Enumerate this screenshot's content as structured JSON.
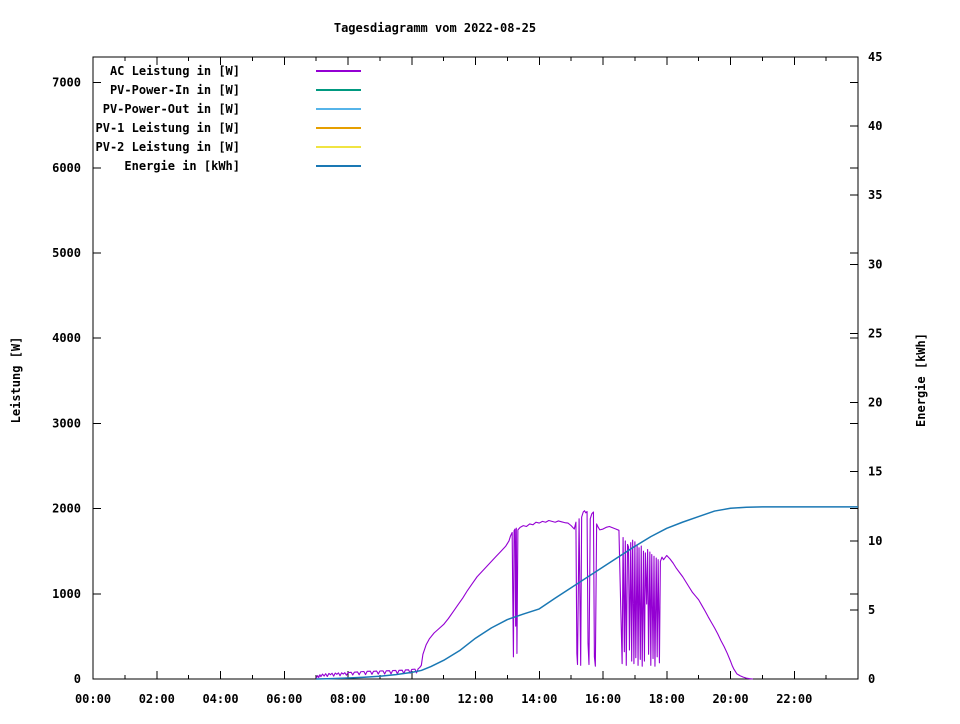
{
  "title": "Tagesdiagramm vom 2022-08-25",
  "axes": {
    "x": {
      "major_hours": [
        0,
        2,
        4,
        6,
        8,
        10,
        12,
        14,
        16,
        18,
        20,
        22
      ],
      "major_labels": [
        "00:00",
        "02:00",
        "04:00",
        "06:00",
        "08:00",
        "10:00",
        "12:00",
        "14:00",
        "16:00",
        "18:00",
        "20:00",
        "22:00"
      ],
      "minor_hours": [
        1,
        3,
        5,
        7,
        9,
        11,
        13,
        15,
        17,
        19,
        21,
        23
      ],
      "range_hours": [
        0,
        24
      ]
    },
    "y_left": {
      "label": "Leistung [W]",
      "ticks": [
        0,
        1000,
        2000,
        3000,
        4000,
        5000,
        6000,
        7000
      ],
      "range": [
        0,
        7300
      ]
    },
    "y_right": {
      "label": "Energie [kWh]",
      "ticks": [
        0,
        5,
        10,
        15,
        20,
        25,
        30,
        35,
        40,
        45
      ],
      "range": [
        0,
        45
      ]
    }
  },
  "legend": [
    {
      "label": "AC Leistung in [W]",
      "color": "#9400D3"
    },
    {
      "label": "PV-Power-In in [W]",
      "color": "#009980"
    },
    {
      "label": "PV-Power-Out in [W]",
      "color": "#56B4E9"
    },
    {
      "label": "PV-1 Leistung in [W]",
      "color": "#E69F00"
    },
    {
      "label": "PV-2 Leistung in [W]",
      "color": "#F0E442"
    },
    {
      "label": "Energie in [kWh]",
      "color": "#1A78B4"
    }
  ],
  "chart_data": {
    "type": "line",
    "title": "Tagesdiagramm vom 2022-08-25",
    "x_unit": "hours (HH:MM)",
    "x_range": [
      0,
      24
    ],
    "y_left_label": "Leistung [W]",
    "y_left_range": [
      0,
      7300
    ],
    "y_right_label": "Energie [kWh]",
    "y_right_range": [
      0,
      45
    ],
    "grid": false,
    "legend_position": "top-left-inside",
    "series": [
      {
        "name": "AC Leistung in [W]",
        "axis": "left",
        "unit": "W",
        "color": "#9400D3",
        "points": [
          [
            7.0,
            8
          ],
          [
            7.05,
            40
          ],
          [
            7.08,
            18
          ],
          [
            7.12,
            50
          ],
          [
            7.15,
            28
          ],
          [
            7.2,
            58
          ],
          [
            7.25,
            35
          ],
          [
            7.3,
            62
          ],
          [
            7.35,
            30
          ],
          [
            7.4,
            65
          ],
          [
            7.45,
            50
          ],
          [
            7.5,
            68
          ],
          [
            7.55,
            34
          ],
          [
            7.6,
            70
          ],
          [
            7.65,
            55
          ],
          [
            7.7,
            72
          ],
          [
            7.75,
            38
          ],
          [
            7.8,
            73
          ],
          [
            7.85,
            58
          ],
          [
            7.9,
            74
          ],
          [
            7.95,
            45
          ],
          [
            8.0,
            75
          ],
          [
            8.1,
            78
          ],
          [
            8.15,
            48
          ],
          [
            8.2,
            80
          ],
          [
            8.3,
            83
          ],
          [
            8.35,
            50
          ],
          [
            8.4,
            85
          ],
          [
            8.5,
            88
          ],
          [
            8.55,
            52
          ],
          [
            8.6,
            90
          ],
          [
            8.7,
            92
          ],
          [
            8.75,
            55
          ],
          [
            8.8,
            90
          ],
          [
            8.9,
            93
          ],
          [
            8.95,
            58
          ],
          [
            9.0,
            94
          ],
          [
            9.1,
            95
          ],
          [
            9.15,
            58
          ],
          [
            9.2,
            96
          ],
          [
            9.3,
            98
          ],
          [
            9.35,
            60
          ],
          [
            9.4,
            99
          ],
          [
            9.5,
            100
          ],
          [
            9.55,
            62
          ],
          [
            9.6,
            102
          ],
          [
            9.7,
            104
          ],
          [
            9.75,
            64
          ],
          [
            9.8,
            106
          ],
          [
            9.9,
            108
          ],
          [
            9.95,
            68
          ],
          [
            10.0,
            112
          ],
          [
            10.1,
            116
          ],
          [
            10.15,
            72
          ],
          [
            10.2,
            120
          ],
          [
            10.25,
            135
          ],
          [
            10.3,
            160
          ],
          [
            10.35,
            290
          ],
          [
            10.45,
            400
          ],
          [
            10.55,
            470
          ],
          [
            10.7,
            540
          ],
          [
            10.85,
            590
          ],
          [
            11.0,
            640
          ],
          [
            11.15,
            710
          ],
          [
            11.3,
            790
          ],
          [
            11.45,
            870
          ],
          [
            11.6,
            950
          ],
          [
            11.75,
            1040
          ],
          [
            11.9,
            1120
          ],
          [
            12.05,
            1200
          ],
          [
            12.2,
            1260
          ],
          [
            12.35,
            1320
          ],
          [
            12.5,
            1380
          ],
          [
            12.65,
            1440
          ],
          [
            12.8,
            1500
          ],
          [
            12.95,
            1560
          ],
          [
            13.05,
            1620
          ],
          [
            13.1,
            1680
          ],
          [
            13.15,
            1720
          ],
          [
            13.17,
            950
          ],
          [
            13.19,
            260
          ],
          [
            13.21,
            1740
          ],
          [
            13.24,
            1760
          ],
          [
            13.26,
            620
          ],
          [
            13.28,
            1770
          ],
          [
            13.3,
            300
          ],
          [
            13.33,
            1750
          ],
          [
            13.4,
            1780
          ],
          [
            13.5,
            1800
          ],
          [
            13.6,
            1790
          ],
          [
            13.7,
            1820
          ],
          [
            13.8,
            1810
          ],
          [
            13.9,
            1840
          ],
          [
            14.0,
            1830
          ],
          [
            14.1,
            1850
          ],
          [
            14.2,
            1840
          ],
          [
            14.3,
            1860
          ],
          [
            14.4,
            1850
          ],
          [
            14.5,
            1840
          ],
          [
            14.6,
            1855
          ],
          [
            14.7,
            1845
          ],
          [
            14.8,
            1835
          ],
          [
            14.9,
            1830
          ],
          [
            15.0,
            1800
          ],
          [
            15.05,
            1780
          ],
          [
            15.1,
            1760
          ],
          [
            15.15,
            1840
          ],
          [
            15.18,
            300
          ],
          [
            15.2,
            170
          ],
          [
            15.25,
            1880
          ],
          [
            15.3,
            160
          ],
          [
            15.33,
            1900
          ],
          [
            15.38,
            1960
          ],
          [
            15.42,
            1975
          ],
          [
            15.46,
            1950
          ],
          [
            15.5,
            1965
          ],
          [
            15.53,
            420
          ],
          [
            15.56,
            170
          ],
          [
            15.6,
            1880
          ],
          [
            15.65,
            1940
          ],
          [
            15.7,
            1960
          ],
          [
            15.73,
            260
          ],
          [
            15.76,
            150
          ],
          [
            15.8,
            1820
          ],
          [
            15.85,
            1780
          ],
          [
            15.9,
            1750
          ],
          [
            16.0,
            1760
          ],
          [
            16.1,
            1780
          ],
          [
            16.2,
            1790
          ],
          [
            16.3,
            1775
          ],
          [
            16.4,
            1760
          ],
          [
            16.5,
            1745
          ],
          [
            16.55,
            950
          ],
          [
            16.6,
            180
          ],
          [
            16.63,
            1660
          ],
          [
            16.67,
            320
          ],
          [
            16.7,
            1620
          ],
          [
            16.73,
            160
          ],
          [
            16.77,
            1580
          ],
          [
            16.8,
            1550
          ],
          [
            16.83,
            340
          ],
          [
            16.87,
            1600
          ],
          [
            16.9,
            210
          ],
          [
            16.93,
            1630
          ],
          [
            16.97,
            180
          ],
          [
            17.0,
            1610
          ],
          [
            17.03,
            250
          ],
          [
            17.07,
            1570
          ],
          [
            17.1,
            160
          ],
          [
            17.13,
            1540
          ],
          [
            17.17,
            230
          ],
          [
            17.2,
            1560
          ],
          [
            17.23,
            150
          ],
          [
            17.27,
            1500
          ],
          [
            17.3,
            210
          ],
          [
            17.33,
            1480
          ],
          [
            17.37,
            880
          ],
          [
            17.4,
            1520
          ],
          [
            17.43,
            290
          ],
          [
            17.47,
            1490
          ],
          [
            17.5,
            160
          ],
          [
            17.53,
            1460
          ],
          [
            17.57,
            240
          ],
          [
            17.6,
            1440
          ],
          [
            17.63,
            150
          ],
          [
            17.67,
            1420
          ],
          [
            17.7,
            260
          ],
          [
            17.73,
            1400
          ],
          [
            17.77,
            190
          ],
          [
            17.8,
            1380
          ],
          [
            17.85,
            1430
          ],
          [
            17.9,
            1400
          ],
          [
            18.0,
            1450
          ],
          [
            18.1,
            1410
          ],
          [
            18.2,
            1360
          ],
          [
            18.3,
            1300
          ],
          [
            18.4,
            1250
          ],
          [
            18.5,
            1200
          ],
          [
            18.6,
            1140
          ],
          [
            18.7,
            1080
          ],
          [
            18.8,
            1020
          ],
          [
            18.9,
            975
          ],
          [
            19.0,
            930
          ],
          [
            19.1,
            865
          ],
          [
            19.2,
            800
          ],
          [
            19.3,
            730
          ],
          [
            19.4,
            665
          ],
          [
            19.5,
            600
          ],
          [
            19.6,
            530
          ],
          [
            19.7,
            450
          ],
          [
            19.8,
            380
          ],
          [
            19.9,
            300
          ],
          [
            20.0,
            210
          ],
          [
            20.05,
            160
          ],
          [
            20.1,
            120
          ],
          [
            20.15,
            90
          ],
          [
            20.2,
            60
          ],
          [
            20.3,
            38
          ],
          [
            20.4,
            22
          ],
          [
            20.5,
            10
          ],
          [
            20.6,
            4
          ],
          [
            20.7,
            0
          ]
        ]
      },
      {
        "name": "Energie in [kWh]",
        "axis": "right",
        "unit": "kWh",
        "color": "#1A78B4",
        "points": [
          [
            7.0,
            0
          ],
          [
            7.5,
            0.03
          ],
          [
            8.0,
            0.07
          ],
          [
            8.5,
            0.13
          ],
          [
            9.0,
            0.2
          ],
          [
            9.5,
            0.32
          ],
          [
            10.0,
            0.48
          ],
          [
            10.3,
            0.62
          ],
          [
            10.6,
            0.9
          ],
          [
            11.0,
            1.35
          ],
          [
            11.5,
            2.05
          ],
          [
            12.0,
            2.95
          ],
          [
            12.5,
            3.7
          ],
          [
            13.0,
            4.3
          ],
          [
            13.5,
            4.7
          ],
          [
            14.0,
            5.07
          ],
          [
            14.5,
            5.85
          ],
          [
            15.0,
            6.6
          ],
          [
            15.5,
            7.35
          ],
          [
            16.0,
            8.1
          ],
          [
            16.5,
            8.85
          ],
          [
            17.0,
            9.6
          ],
          [
            17.5,
            10.3
          ],
          [
            18.0,
            10.9
          ],
          [
            18.5,
            11.35
          ],
          [
            19.0,
            11.75
          ],
          [
            19.5,
            12.15
          ],
          [
            20.0,
            12.35
          ],
          [
            20.5,
            12.43
          ],
          [
            21.0,
            12.45
          ],
          [
            22.0,
            12.45
          ],
          [
            23.0,
            12.45
          ],
          [
            24.0,
            12.45
          ]
        ]
      }
    ],
    "legend_only_series": [
      {
        "name": "PV-Power-In in [W]",
        "color": "#009980",
        "note": "listed in legend; no separate visible trace"
      },
      {
        "name": "PV-Power-Out in [W]",
        "color": "#56B4E9",
        "note": "listed in legend; no separate visible trace"
      },
      {
        "name": "PV-1 Leistung in [W]",
        "color": "#E69F00",
        "note": "listed in legend; no separate visible trace"
      },
      {
        "name": "PV-2 Leistung in [W]",
        "color": "#F0E442",
        "note": "listed in legend; no separate visible trace"
      }
    ]
  }
}
